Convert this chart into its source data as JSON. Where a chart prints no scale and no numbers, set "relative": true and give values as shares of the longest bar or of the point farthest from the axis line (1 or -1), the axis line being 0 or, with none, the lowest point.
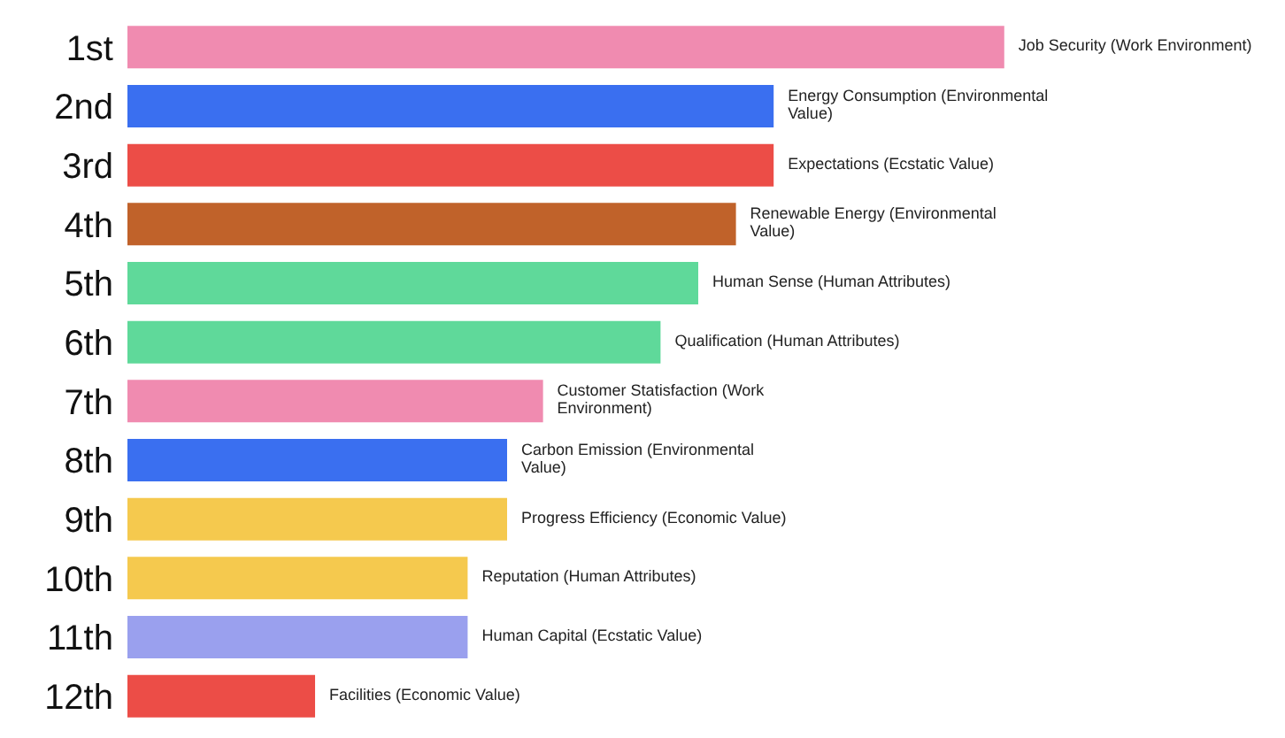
{
  "chart_data": {
    "type": "bar",
    "orientation": "horizontal",
    "relative": true,
    "categories": [
      "1st",
      "2nd",
      "3rd",
      "4th",
      "5th",
      "6th",
      "7th",
      "8th",
      "9th",
      "10th",
      "11th",
      "12th"
    ],
    "values": [
      1,
      0.737,
      0.737,
      0.694,
      0.651,
      0.608,
      0.474,
      0.433,
      0.433,
      0.388,
      0.388,
      0.214
    ],
    "colors": [
      "#f08bb0",
      "#3a6ff0",
      "#ec4d47",
      "#c0622a",
      "#5fd99a",
      "#5fd99a",
      "#f08bb0",
      "#3a6ff0",
      "#f5c94e",
      "#f5c94e",
      "#9aa0ee",
      "#ec4d47"
    ],
    "annotations": [
      {
        "text": "Job Security (Work Environment)",
        "x": 1,
        "y": "1st"
      },
      {
        "text": "Energy Consumption (Environmental Value)",
        "x": 0.737,
        "y": "2nd"
      },
      {
        "text": "Expectations (Ecstatic Value)",
        "x": 0.737,
        "y": "3rd"
      },
      {
        "text": "Renewable Energy (Environmental Value)",
        "x": 0.694,
        "y": "4th"
      },
      {
        "text": "Human Sense (Human Attributes)",
        "x": 0.651,
        "y": "5th"
      },
      {
        "text": "Qualification (Human Attributes)",
        "x": 0.608,
        "y": "6th"
      },
      {
        "text": "Customer Statisfaction (Work Environment)",
        "x": 0.474,
        "y": "7th"
      },
      {
        "text": "Carbon Emission (Environmental Value)",
        "x": 0.433,
        "y": "8th"
      },
      {
        "text": "Progress Efficiency (Economic Value)",
        "x": 0.433,
        "y": "9th"
      },
      {
        "text": "Reputation (Human Attributes)",
        "x": 0.388,
        "y": "10th"
      },
      {
        "text": "Human Capital (Ecstatic Value)",
        "x": 0.388,
        "y": "11th"
      },
      {
        "text": "Facilities (Economic Value)",
        "x": 0.214,
        "y": "12th"
      }
    ],
    "legend": false,
    "grid": false
  }
}
